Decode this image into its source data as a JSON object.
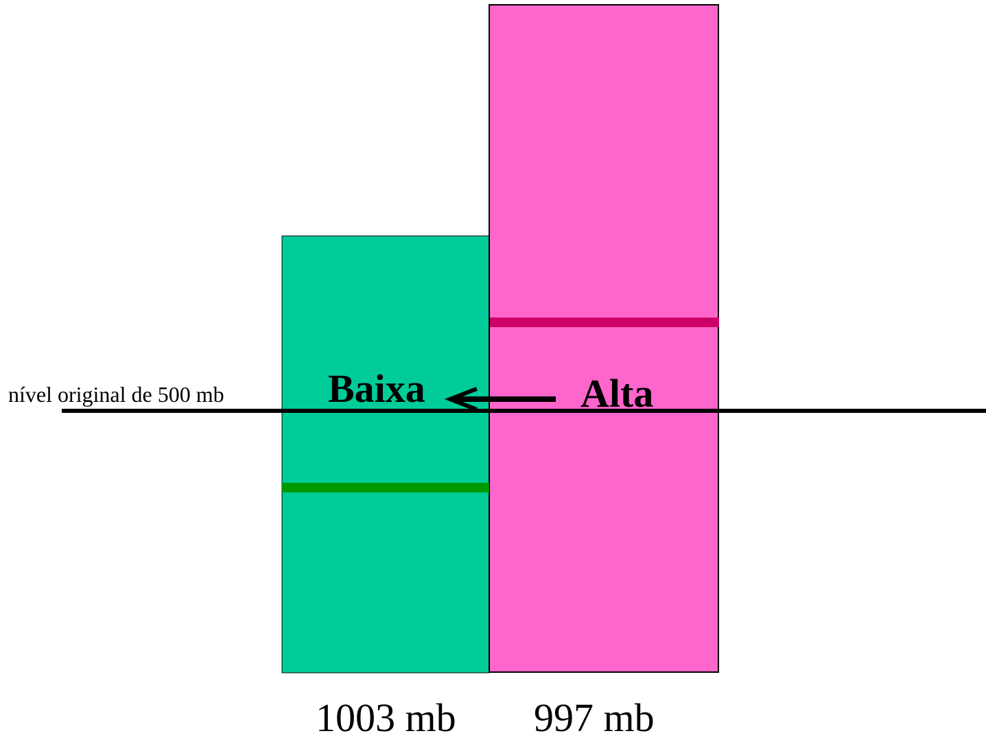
{
  "diagram": {
    "level_label": "nível original de 500 mb",
    "low_label": "Baixa",
    "high_label": "Alta",
    "left_column_pressure": "1003 mb",
    "right_column_pressure": "997 mb",
    "colors": {
      "left_column_fill": "#00CC99",
      "left_column_line": "#009900",
      "right_column_fill": "#FF66CC",
      "right_column_line": "#CC0066",
      "outline": "#000000",
      "background": "#FFFFFF"
    },
    "arrow_direction": "left"
  }
}
